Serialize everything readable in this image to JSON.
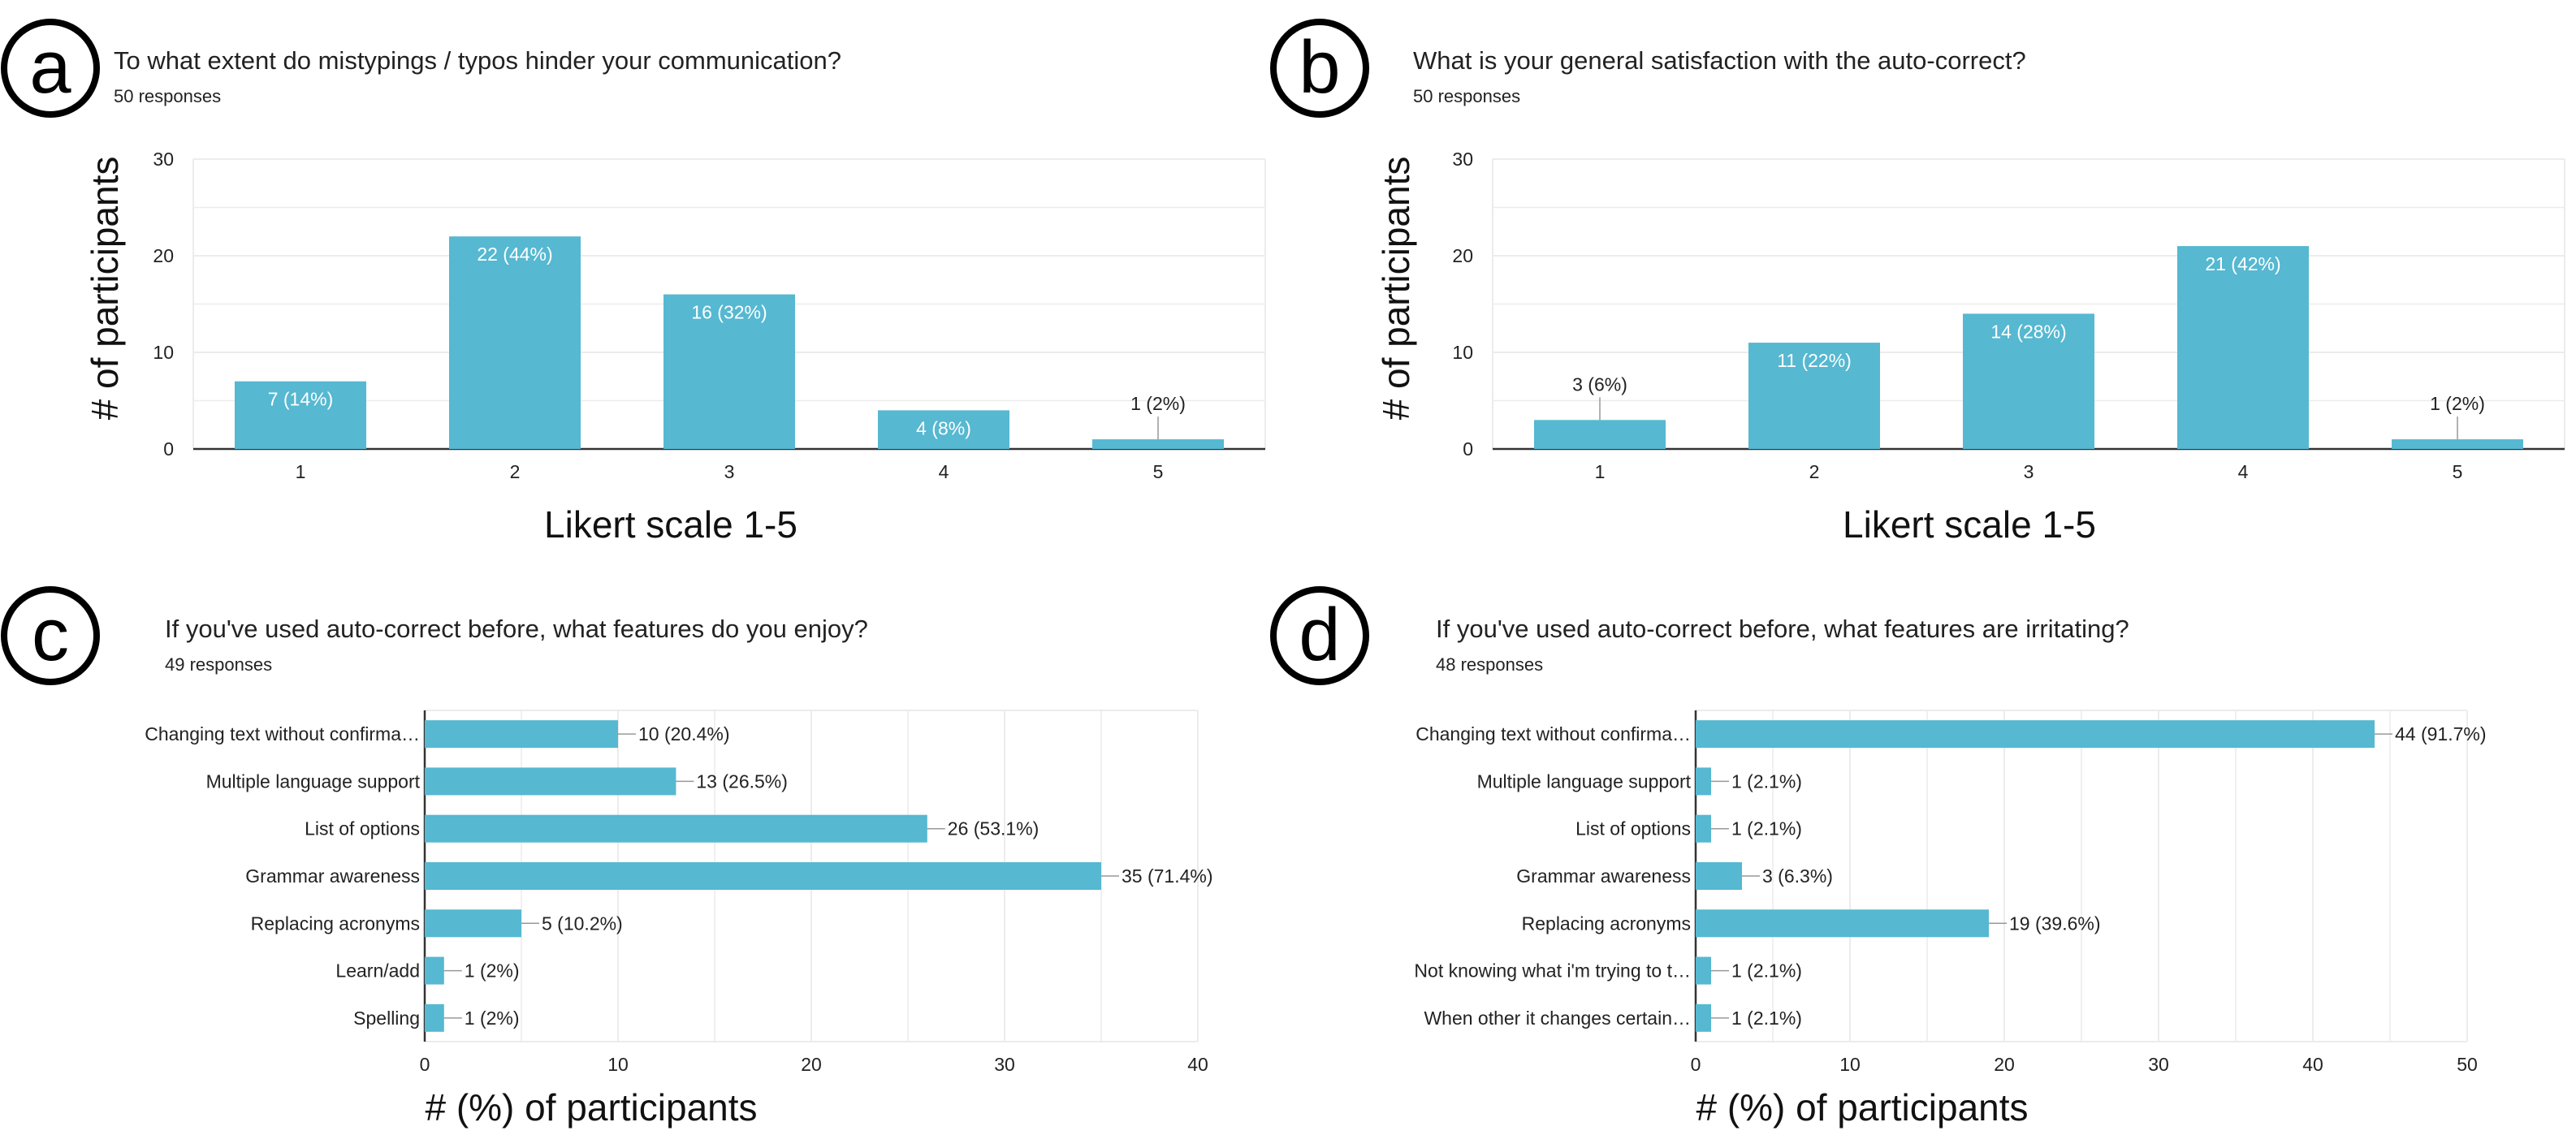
{
  "style": {
    "bar_color": "#56b8d1",
    "grid_color": "#ececec",
    "axis_color": "#333333",
    "text_color": "#222222",
    "label_inside_color": "#ffffff"
  },
  "chart_data": [
    {
      "panel": "a",
      "type": "bar",
      "title": "To what extent do mistypings / typos hinder your communication?",
      "subtitle": "50 responses",
      "xlabel": "Likert scale 1-5",
      "ylabel": "# of participants",
      "categories": [
        "1",
        "2",
        "3",
        "4",
        "5"
      ],
      "values": [
        7,
        22,
        16,
        4,
        1
      ],
      "data_labels": [
        "7 (14%)",
        "22 (44%)",
        "16 (32%)",
        "4 (8%)",
        "1 (2%)"
      ],
      "yticks": [
        "0",
        "10",
        "20",
        "30"
      ],
      "ylim": [
        0,
        30
      ],
      "grid": true
    },
    {
      "panel": "b",
      "type": "bar",
      "title": "What is your general satisfaction with the auto-correct?",
      "subtitle": "50 responses",
      "xlabel": "Likert scale 1-5",
      "ylabel": "# of participants",
      "categories": [
        "1",
        "2",
        "3",
        "4",
        "5"
      ],
      "values": [
        3,
        11,
        14,
        21,
        1
      ],
      "data_labels": [
        "3 (6%)",
        "11 (22%)",
        "14 (28%)",
        "21 (42%)",
        "1 (2%)"
      ],
      "yticks": [
        "0",
        "10",
        "20",
        "30"
      ],
      "ylim": [
        0,
        30
      ],
      "grid": true
    },
    {
      "panel": "c",
      "type": "bar",
      "orientation": "horizontal",
      "title": "If you've used auto-correct before, what features do you enjoy?",
      "subtitle": "49 responses",
      "xlabel": "# (%) of participants",
      "ylabel": "",
      "categories": [
        "Changing text without confirma…",
        "Multiple language support",
        "List of options",
        "Grammar awareness",
        "Replacing acronyms",
        "Learn/add",
        "Spelling"
      ],
      "values": [
        10,
        13,
        26,
        35,
        5,
        1,
        1
      ],
      "data_labels": [
        "10 (20.4%)",
        "13 (26.5%)",
        "26 (53.1%)",
        "35 (71.4%)",
        "5 (10.2%)",
        "1 (2%)",
        "1 (2%)"
      ],
      "xticks": [
        "0",
        "10",
        "20",
        "30",
        "40"
      ],
      "xlim": [
        0,
        40
      ],
      "grid": true
    },
    {
      "panel": "d",
      "type": "bar",
      "orientation": "horizontal",
      "title": "If you've used auto-correct before, what features are irritating?",
      "subtitle": "48 responses",
      "xlabel": "# (%) of participants",
      "ylabel": "",
      "categories": [
        "Changing text without confirma…",
        "Multiple language support",
        "List of options",
        "Grammar awareness",
        "Replacing acronyms",
        "Not knowing what i'm trying to t…",
        "When other it changes certain…"
      ],
      "values": [
        44,
        1,
        1,
        3,
        19,
        1,
        1
      ],
      "data_labels": [
        "44 (91.7%)",
        "1 (2.1%)",
        "1 (2.1%)",
        "3 (6.3%)",
        "19 (39.6%)",
        "1 (2.1%)",
        "1 (2.1%)"
      ],
      "xticks": [
        "0",
        "10",
        "20",
        "30",
        "40",
        "50"
      ],
      "xlim": [
        0,
        50
      ],
      "grid": true
    }
  ]
}
